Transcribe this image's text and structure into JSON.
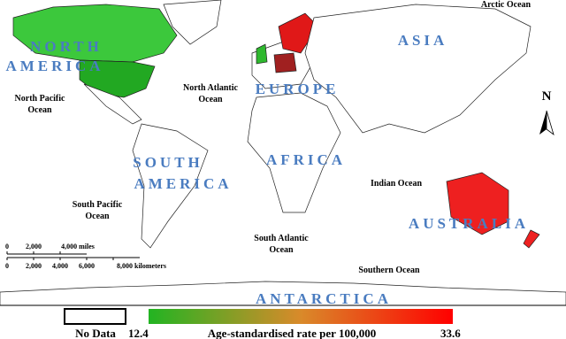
{
  "map": {
    "continents": {
      "north_america": [
        "NORTH",
        "AMERICA"
      ],
      "south_america": [
        "SOUTH",
        "AMERICA"
      ],
      "europe": "EUROPE",
      "asia": "ASIA",
      "africa": "AFRICA",
      "australia": "AUSTRALIA",
      "antarctica": "ANTARCTICA"
    },
    "oceans": {
      "north_pacific": [
        "North Pacific",
        "Ocean"
      ],
      "north_atlantic": [
        "North Atlantic",
        "Ocean"
      ],
      "south_pacific": [
        "South Pacific",
        "Ocean"
      ],
      "south_atlantic": [
        "South Atlantic",
        "Ocean"
      ],
      "indian": "Indian Ocean",
      "southern": "Southern Ocean",
      "arctic": "Arctic Ocean"
    },
    "north_arrow": "N",
    "scale_bar": {
      "miles": [
        "0",
        "2,000",
        "4,000 miles"
      ],
      "kilometers": [
        "0",
        "2,000",
        "4,000",
        "6,000",
        "8,000 kilometers"
      ]
    }
  },
  "legend": {
    "no_data": "No Data",
    "min": 12.4,
    "title": "Age-standardised rate per 100,000",
    "max": 33.6,
    "colors": [
      "#22b422",
      "#ff0000"
    ]
  }
}
